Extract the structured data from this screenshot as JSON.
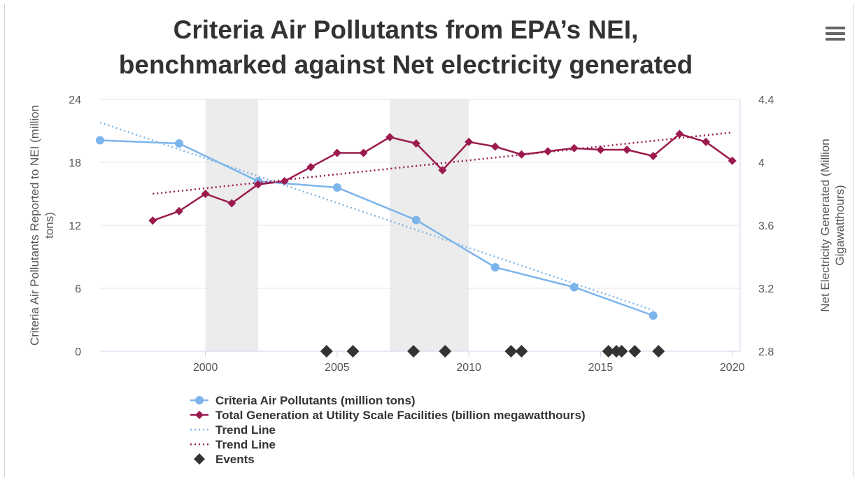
{
  "header": {
    "title_line1": "Criteria Air Pollutants from EPA’s NEI,",
    "title_line2": "benchmarked against Net electricity generated",
    "menu_icon": "hamburger-menu-icon"
  },
  "chart_data": {
    "type": "line",
    "title": "Criteria Air Pollutants from EPA’s NEI, benchmarked against Net electricity generated",
    "xlabel": "",
    "x_ticks": [
      2000,
      2005,
      2010,
      2015,
      2020
    ],
    "xlim": [
      1996,
      2020.3
    ],
    "ylabel_left": "Criteria Air Pollutants Reported to NEI (million tons)",
    "ylabel_left_lines": [
      "Criteria Air Pollutants Reported to NEI (million",
      "tons)"
    ],
    "ylim_left": [
      0,
      24
    ],
    "y_ticks_left": [
      0,
      6,
      12,
      18,
      24
    ],
    "ylabel_right": "Net Electricity Generated (Million Gigawatthours)",
    "ylabel_right_lines": [
      "Net Electricity Generated (Million",
      "Gigawatthours)"
    ],
    "ylim_right": [
      2.8,
      4.4
    ],
    "y_ticks_right": [
      2.8,
      3.2,
      3.6,
      4,
      4.4
    ],
    "grid": true,
    "legend_position": "bottom",
    "shaded_bands": [
      [
        2000,
        2002
      ],
      [
        2007,
        2010
      ]
    ],
    "series": [
      {
        "name": "Criteria Air Pollutants (million tons)",
        "axis": "left",
        "style": "line-circle",
        "color": "#7cb5ec",
        "x": [
          1996,
          1999,
          2002,
          2005,
          2008,
          2011,
          2014,
          2017
        ],
        "y": [
          20.1,
          19.8,
          16.2,
          15.6,
          12.5,
          8.0,
          6.1,
          3.4
        ]
      },
      {
        "name": "Total Generation at Utility Scale Facilities (billion megawatthours)",
        "axis": "right",
        "style": "line-diamond",
        "color": "#9b1b4e",
        "x": [
          1998,
          1999,
          2000,
          2001,
          2002,
          2003,
          2004,
          2005,
          2006,
          2007,
          2008,
          2009,
          2010,
          2011,
          2012,
          2013,
          2014,
          2015,
          2016,
          2017,
          2018,
          2019,
          2020
        ],
        "y": [
          3.63,
          3.69,
          3.8,
          3.74,
          3.86,
          3.88,
          3.97,
          4.06,
          4.06,
          4.16,
          4.12,
          3.95,
          4.13,
          4.1,
          4.05,
          4.07,
          4.09,
          4.08,
          4.08,
          4.04,
          4.18,
          4.13,
          4.01
        ]
      },
      {
        "name": "Trend Line",
        "axis": "left",
        "style": "dotted",
        "color": "#7cb5ec",
        "x": [
          1996,
          2017
        ],
        "y": [
          21.8,
          3.9
        ]
      },
      {
        "name": "Trend Line",
        "axis": "right",
        "style": "dotted",
        "color": "#9b1b4e",
        "x": [
          1998,
          2020
        ],
        "y": [
          3.8,
          4.19
        ]
      },
      {
        "name": "Events",
        "axis": "left",
        "style": "diamond-marker",
        "color": "#333333",
        "x": [
          2004.6,
          2005.6,
          2007.9,
          2009.1,
          2011.6,
          2012.0,
          2015.3,
          2015.6,
          2015.8,
          2016.3,
          2017.2
        ],
        "y": [
          0,
          0,
          0,
          0,
          0,
          0,
          0,
          0,
          0,
          0,
          0
        ]
      }
    ]
  }
}
